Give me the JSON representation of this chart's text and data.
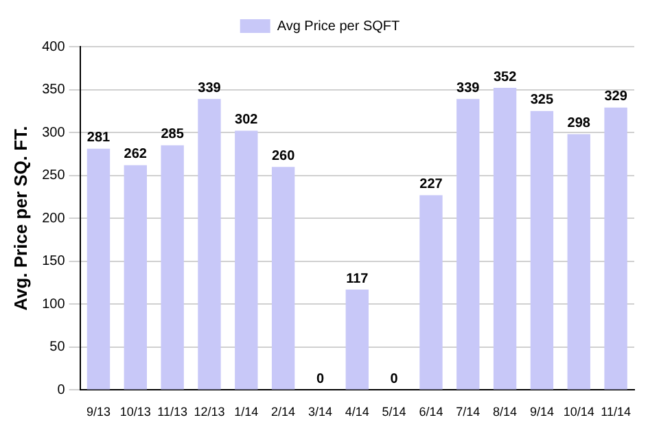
{
  "chart_data": {
    "type": "bar",
    "ylabel": "Avg. Price per SQ. FT.",
    "categories": [
      "9/13",
      "10/13",
      "11/13",
      "12/13",
      "1/14",
      "2/14",
      "3/14",
      "4/14",
      "5/14",
      "6/14",
      "7/14",
      "8/14",
      "9/14",
      "10/14",
      "11/14"
    ],
    "series": [
      {
        "name": "Avg Price per SQFT",
        "color": "#c8c8f8",
        "values": [
          281,
          262,
          285,
          339,
          302,
          260,
          0,
          117,
          0,
          227,
          339,
          352,
          325,
          298,
          329
        ]
      }
    ],
    "ylim": [
      0,
      400
    ],
    "yticks": [
      0,
      50,
      100,
      150,
      200,
      250,
      300,
      350,
      400
    ],
    "grid": "y",
    "legend": "top",
    "data_labels": true
  }
}
